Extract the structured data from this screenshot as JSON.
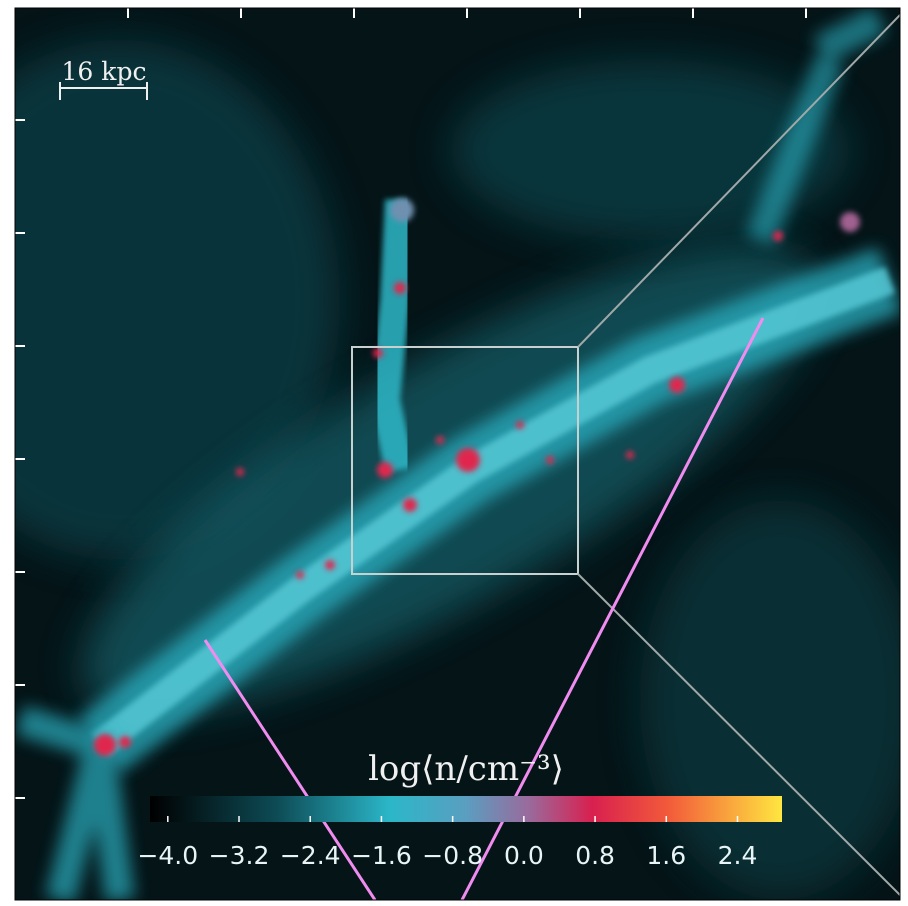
{
  "scale_bar": {
    "label": "16 kpc"
  },
  "colorbar": {
    "label": "log⟨n/cm⁻³⟩",
    "clim": [
      -4.2,
      2.9
    ],
    "ticks": [
      {
        "value": -4.0,
        "label": "−4.0"
      },
      {
        "value": -3.2,
        "label": "−3.2"
      },
      {
        "value": -2.4,
        "label": "−2.4"
      },
      {
        "value": -1.6,
        "label": "−1.6"
      },
      {
        "value": -0.8,
        "label": "−0.8"
      },
      {
        "value": 0.0,
        "label": "0.0"
      },
      0.8,
      1.6,
      2.4
    ]
  }
}
